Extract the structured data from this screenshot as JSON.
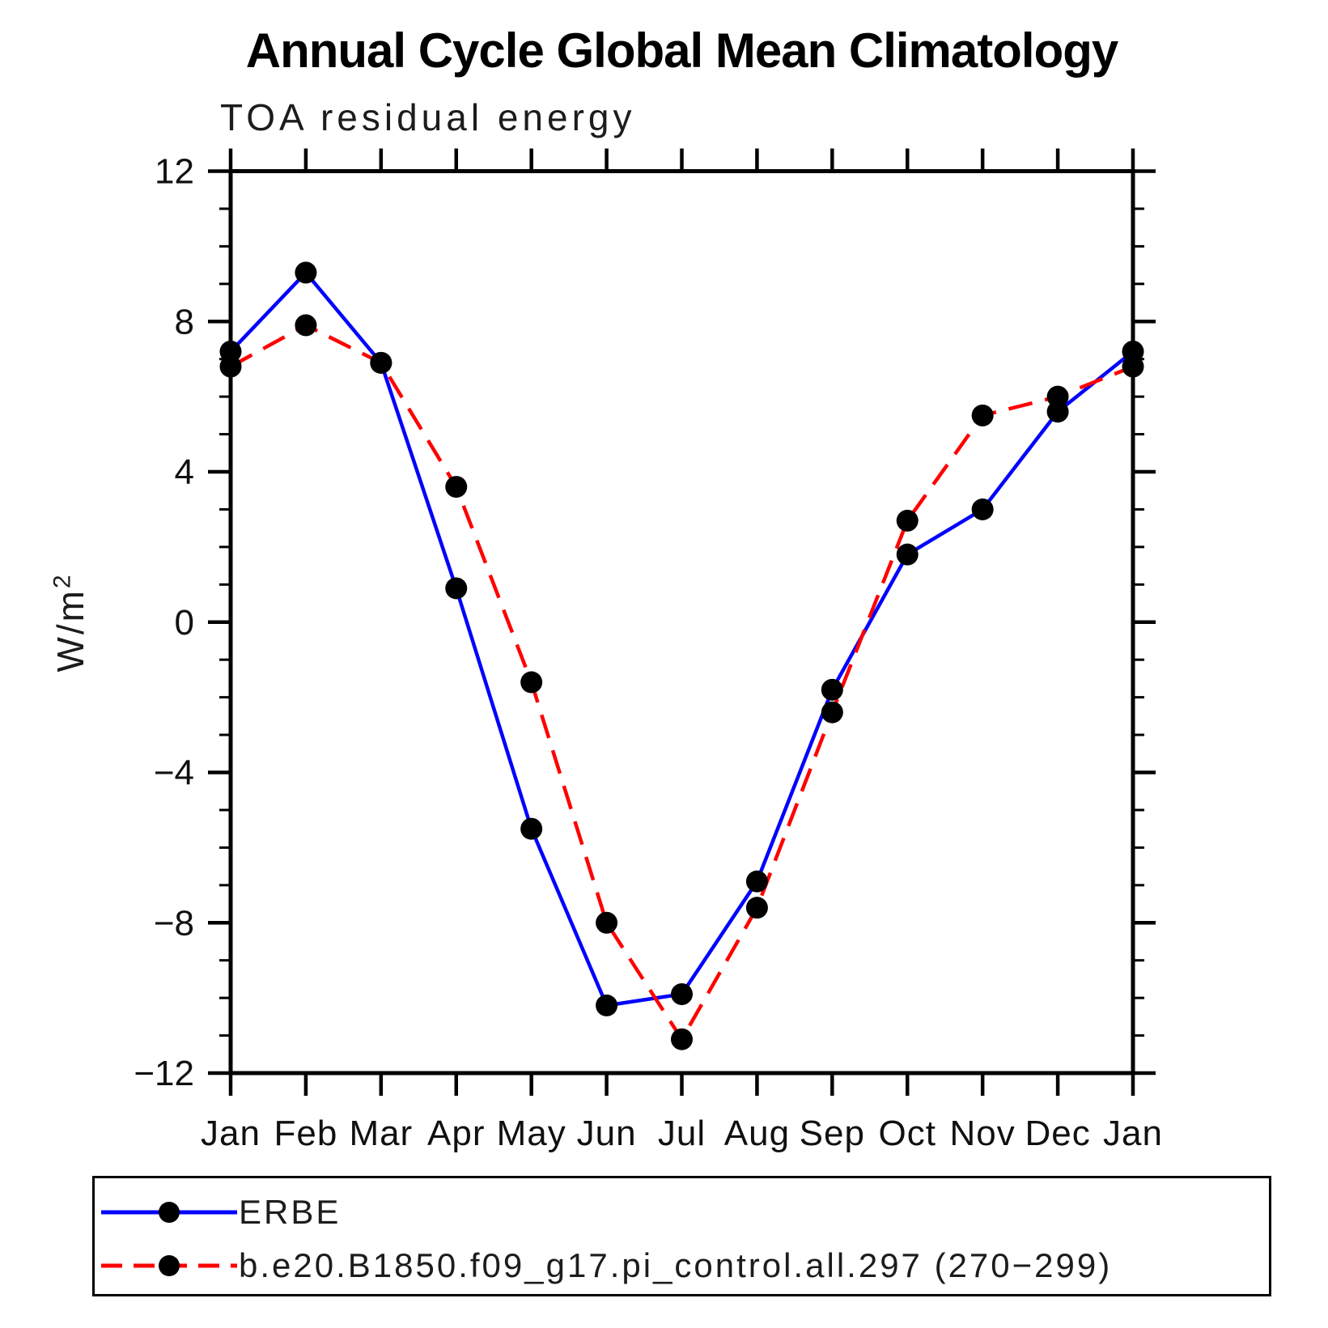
{
  "title": "Annual Cycle Global Mean Climatology",
  "subtitle": "TOA residual energy",
  "y_axis_title_base": "W/m",
  "y_axis_title_exp": "2",
  "colors": {
    "erbe_line": "#0000ff",
    "model_line": "#ff0000",
    "marker": "#000000",
    "axis": "#000000",
    "background": "#ffffff"
  },
  "chart_data": {
    "type": "line",
    "title": "Annual Cycle Global Mean Climatology",
    "subtitle": "TOA residual energy",
    "xlabel": "",
    "ylabel": "W/m²",
    "ylim": [
      -12,
      12
    ],
    "y_major_ticks": [
      -12,
      -8,
      -4,
      0,
      4,
      8,
      12
    ],
    "y_minor_step": 1,
    "grid": false,
    "legend_position": "bottom",
    "categories": [
      "Jan",
      "Feb",
      "Mar",
      "Apr",
      "May",
      "Jun",
      "Jul",
      "Aug",
      "Sep",
      "Oct",
      "Nov",
      "Dec",
      "Jan"
    ],
    "series": [
      {
        "name": "ERBE",
        "color": "#0000ff",
        "line_style": "solid",
        "marker": "circle",
        "marker_color": "#000000",
        "values": [
          7.2,
          9.3,
          6.9,
          0.9,
          -5.5,
          -10.2,
          -9.9,
          -6.9,
          -1.8,
          1.8,
          3.0,
          5.6,
          7.2
        ]
      },
      {
        "name": "b.e20.B1850.f09_g17.pi_control.all.297 (270−299)",
        "color": "#ff0000",
        "line_style": "dashed",
        "marker": "circle",
        "marker_color": "#000000",
        "values": [
          6.8,
          7.9,
          6.9,
          3.6,
          -1.6,
          -8.0,
          -11.1,
          -7.6,
          -2.4,
          2.7,
          5.5,
          6.0,
          6.8
        ]
      }
    ]
  },
  "legend": {
    "items": [
      {
        "label": "ERBE"
      },
      {
        "label": "b.e20.B1850.f09_g17.pi_control.all.297 (270−299)"
      }
    ]
  }
}
